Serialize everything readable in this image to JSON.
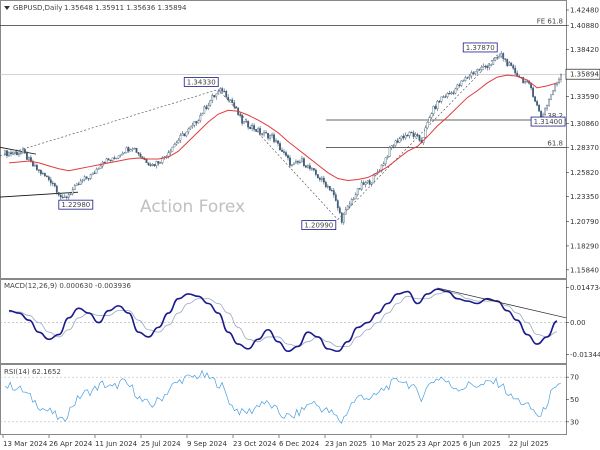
{
  "header": {
    "symbol": "GBPUSD,Daily",
    "ohlc": "1.35648 1.35911 1.35636 1.35894"
  },
  "watermark": "Action Forex",
  "colors": {
    "candle": "#3d5a73",
    "ma": "#e03c3c",
    "macd": "#1a1a8c",
    "signal": "#9aa8c0",
    "rsi": "#4a9fe0",
    "label_box": "#1a1a8c"
  },
  "chart_data": [
    {
      "type": "line",
      "name": "price",
      "title": "GBPUSD,Daily",
      "ylim": [
        1.15,
        1.433
      ],
      "y_ticks": [
        "1.42480",
        "1.40880",
        "1.38420",
        "1.35894",
        "1.33590",
        "1.30860",
        "1.28370",
        "1.25820",
        "1.23350",
        "1.20790",
        "1.18290",
        "1.15840"
      ],
      "current_price": "1.35894",
      "x_ticks": [
        "13 Mar 2024",
        "26 Apr 2024",
        "11 Jun 2024",
        "25 Jul 2024",
        "9 Sep 2024",
        "23 Oct 2024",
        "6 Dec 2024",
        "23 Jan 2025",
        "10 Mar 2025",
        "23 Apr 2025",
        "6 Jun 2025",
        "22 Jul 2025"
      ],
      "close_series": [
        1.278,
        1.279,
        1.265,
        1.256,
        1.248,
        1.2298,
        1.24,
        1.25,
        1.256,
        1.27,
        1.271,
        1.28,
        1.285,
        1.273,
        1.266,
        1.272,
        1.285,
        1.296,
        1.305,
        1.32,
        1.335,
        1.3433,
        1.33,
        1.31,
        1.305,
        1.298,
        1.295,
        1.28,
        1.265,
        1.27,
        1.26,
        1.25,
        1.24,
        1.2099,
        1.23,
        1.245,
        1.25,
        1.265,
        1.285,
        1.295,
        1.298,
        1.29,
        1.32,
        1.335,
        1.34,
        1.35,
        1.36,
        1.365,
        1.37,
        1.3787,
        1.365,
        1.355,
        1.345,
        1.314,
        1.338,
        1.3589
      ],
      "ma_series": [
        1.268,
        1.269,
        1.27,
        1.268,
        1.265,
        1.262,
        1.26,
        1.262,
        1.264,
        1.266,
        1.268,
        1.27,
        1.272,
        1.273,
        1.272,
        1.272,
        1.274,
        1.28,
        1.29,
        1.3,
        1.31,
        1.318,
        1.322,
        1.321,
        1.317,
        1.312,
        1.306,
        1.299,
        1.29,
        1.282,
        1.274,
        1.266,
        1.258,
        1.252,
        1.25,
        1.251,
        1.253,
        1.258,
        1.264,
        1.272,
        1.28,
        1.285,
        1.295,
        1.306,
        1.315,
        1.325,
        1.335,
        1.342,
        1.35,
        1.356,
        1.358,
        1.357,
        1.353,
        1.345,
        1.347,
        1.35
      ],
      "levels": [
        {
          "label": "FE 61.8",
          "value": 1.4088
        },
        {
          "label": "38.2",
          "value": 1.312
        },
        {
          "label": "61.8",
          "value": 1.2837
        }
      ],
      "annotations": [
        {
          "text": "1.22980",
          "value": 1.2298
        },
        {
          "text": "1.34330",
          "value": 1.3433
        },
        {
          "text": "1.20990",
          "value": 1.2099
        },
        {
          "text": "1.37870",
          "value": 1.3787
        },
        {
          "text": "1.31400",
          "value": 1.314
        }
      ]
    },
    {
      "type": "line",
      "name": "macd",
      "title": "MACD(12,26,9) 0.000630 -0.003936",
      "ylim": [
        -0.0165,
        0.017
      ],
      "y_ticks": [
        "0.014734",
        "0.00",
        "-0.013442"
      ],
      "macd_series": [
        0.005,
        0.004,
        0.001,
        -0.004,
        -0.007,
        -0.005,
        0.002,
        0.006,
        0.004,
        0.0,
        0.005,
        0.007,
        0.004,
        -0.004,
        -0.006,
        -0.002,
        0.004,
        0.01,
        0.012,
        0.011,
        0.008,
        0.004,
        -0.004,
        -0.009,
        -0.011,
        -0.007,
        -0.003,
        -0.008,
        -0.012,
        -0.01,
        -0.004,
        -0.006,
        -0.011,
        -0.012,
        -0.008,
        -0.002,
        0.0,
        0.004,
        0.008,
        0.012,
        0.013,
        0.008,
        0.012,
        0.014,
        0.013,
        0.01,
        0.009,
        0.008,
        0.01,
        0.009,
        0.005,
        0.001,
        -0.005,
        -0.009,
        -0.006,
        0.0006
      ],
      "signal_series": [
        0.0045,
        0.0045,
        0.003,
        0.0,
        -0.004,
        -0.006,
        -0.003,
        0.002,
        0.004,
        0.003,
        0.003,
        0.005,
        0.005,
        0.001,
        -0.003,
        -0.004,
        -0.001,
        0.004,
        0.008,
        0.01,
        0.01,
        0.008,
        0.004,
        -0.002,
        -0.007,
        -0.008,
        -0.006,
        -0.006,
        -0.009,
        -0.01,
        -0.008,
        -0.006,
        -0.008,
        -0.01,
        -0.01,
        -0.006,
        -0.003,
        0.0,
        0.004,
        0.008,
        0.011,
        0.01,
        0.01,
        0.012,
        0.013,
        0.012,
        0.01,
        0.009,
        0.009,
        0.009,
        0.007,
        0.004,
        0.0,
        -0.005,
        -0.006,
        -0.0039
      ]
    },
    {
      "type": "line",
      "name": "rsi",
      "title": "RSI(14) 62.1652",
      "ylim": [
        20,
        80
      ],
      "y_ticks": [
        "70",
        "50",
        "30"
      ],
      "rsi_series": [
        62,
        58,
        50,
        42,
        38,
        30,
        45,
        55,
        58,
        64,
        60,
        66,
        60,
        48,
        45,
        52,
        62,
        68,
        70,
        72,
        68,
        62,
        44,
        38,
        40,
        48,
        44,
        36,
        34,
        40,
        48,
        42,
        38,
        30,
        46,
        54,
        50,
        58,
        64,
        68,
        62,
        52,
        66,
        70,
        62,
        60,
        64,
        62,
        66,
        64,
        52,
        48,
        42,
        34,
        55,
        62.17
      ]
    }
  ]
}
